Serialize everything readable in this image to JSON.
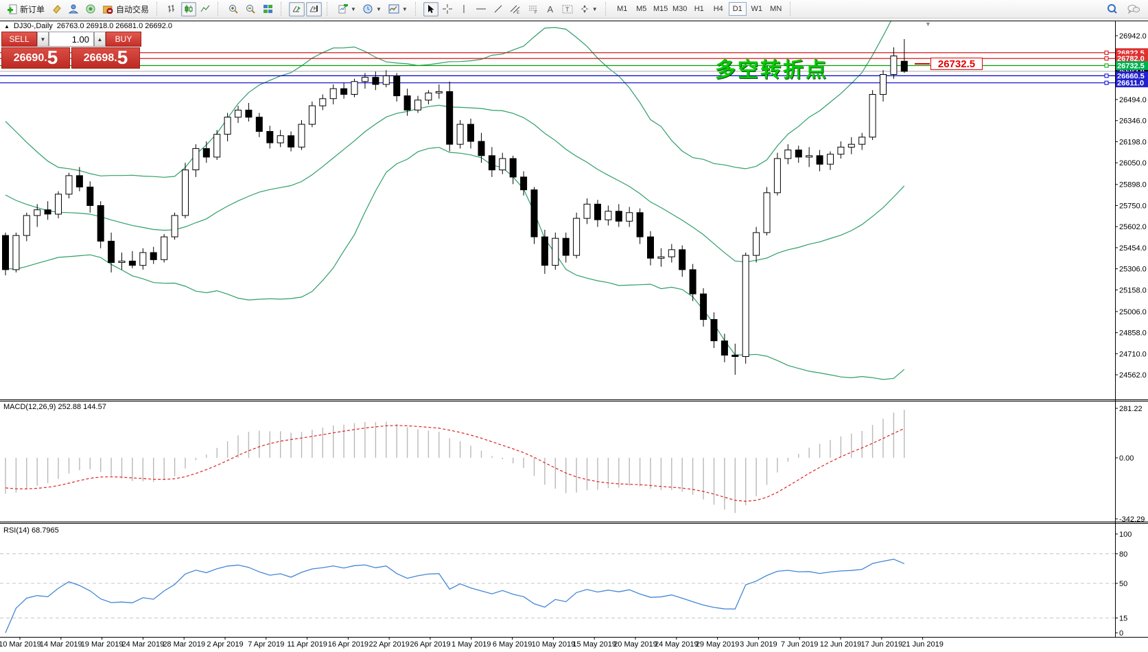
{
  "toolbar": {
    "new_order_label": "新订单",
    "autotrading_label": "自动交易",
    "timeframes": [
      "M1",
      "M5",
      "M15",
      "M30",
      "H1",
      "H4",
      "D1",
      "W1",
      "MN"
    ],
    "active_timeframe": "D1",
    "text_tool_a": "A",
    "channel_sub": "E",
    "fibo_sub": "F"
  },
  "chart": {
    "collapse_icon": "▲",
    "title": "DJ30-,Daily",
    "ohlc_text": "26763.0 26918.0 26681.0 26692.0",
    "annotation_text": "多空转折点",
    "price_tag_text": "26732.5",
    "scroll_marker": "▼",
    "trade_panel": {
      "sell_label": "SELL",
      "buy_label": "BUY",
      "volume": "1.00",
      "step_down": "▼",
      "step_up": "▲",
      "sell_price_main": "26690",
      "sell_price_dot": ".",
      "sell_price_big": "5",
      "buy_price_main": "26698",
      "buy_price_dot": ".",
      "buy_price_big": "5"
    },
    "macd_label": "MACD(12,26,9) 252.88 144.57",
    "rsi_label": "RSI(14) 68.7965"
  },
  "chart_data": {
    "type": "candlestick",
    "symbol": "DJ30-",
    "timeframe": "Daily",
    "current_ohlc": {
      "open": 26763.0,
      "high": 26918.0,
      "low": 26681.0,
      "close": 26692.0
    },
    "bid": 26690.5,
    "ask": 26698.5,
    "y_axis_ticks": [
      "26942.0",
      "26494.0",
      "26346.0",
      "26198.0",
      "26050.0",
      "25898.0",
      "25750.0",
      "25602.0",
      "25454.0",
      "25306.0",
      "25158.0",
      "25006.0",
      "24858.0",
      "24710.0",
      "24562.0"
    ],
    "x_axis_dates": [
      "10 Mar 2019",
      "14 Mar 2019",
      "19 Mar 2019",
      "24 Mar 2019",
      "28 Mar 2019",
      "2 Apr 2019",
      "7 Apr 2019",
      "11 Apr 2019",
      "16 Apr 2019",
      "22 Apr 2019",
      "26 Apr 2019",
      "1 May 2019",
      "6 May 2019",
      "10 May 2019",
      "15 May 2019",
      "20 May 2019",
      "24 May 2019",
      "29 May 2019",
      "3 Jun 2019",
      "7 Jun 2019",
      "12 Jun 2019",
      "17 Jun 2019",
      "21 Jun 2019"
    ],
    "candles": [
      [
        25540,
        25560,
        25260,
        25300
      ],
      [
        25300,
        25560,
        25280,
        25540
      ],
      [
        25540,
        25700,
        25500,
        25680
      ],
      [
        25680,
        25760,
        25600,
        25720
      ],
      [
        25720,
        25780,
        25650,
        25690
      ],
      [
        25690,
        25850,
        25660,
        25830
      ],
      [
        25830,
        25980,
        25800,
        25960
      ],
      [
        25960,
        26020,
        25850,
        25880
      ],
      [
        25880,
        25920,
        25700,
        25750
      ],
      [
        25750,
        25780,
        25450,
        25500
      ],
      [
        25500,
        25560,
        25280,
        25350
      ],
      [
        25350,
        25420,
        25300,
        25360
      ],
      [
        25360,
        25430,
        25310,
        25330
      ],
      [
        25330,
        25450,
        25300,
        25420
      ],
      [
        25420,
        25460,
        25340,
        25370
      ],
      [
        25370,
        25550,
        25350,
        25530
      ],
      [
        25530,
        25700,
        25510,
        25680
      ],
      [
        25680,
        26050,
        25660,
        26000
      ],
      [
        26000,
        26180,
        25950,
        26150
      ],
      [
        26150,
        26200,
        26050,
        26090
      ],
      [
        26090,
        26280,
        26070,
        26250
      ],
      [
        26250,
        26400,
        26200,
        26370
      ],
      [
        26370,
        26450,
        26330,
        26420
      ],
      [
        26420,
        26470,
        26340,
        26370
      ],
      [
        26370,
        26400,
        26230,
        26270
      ],
      [
        26270,
        26310,
        26150,
        26190
      ],
      [
        26190,
        26280,
        26160,
        26240
      ],
      [
        26240,
        26270,
        26130,
        26160
      ],
      [
        26160,
        26350,
        26140,
        26320
      ],
      [
        26320,
        26480,
        26300,
        26450
      ],
      [
        26450,
        26530,
        26420,
        26500
      ],
      [
        26500,
        26600,
        26460,
        26570
      ],
      [
        26570,
        26610,
        26500,
        26530
      ],
      [
        26530,
        26640,
        26510,
        26620
      ],
      [
        26620,
        26680,
        26570,
        26650
      ],
      [
        26650,
        26690,
        26560,
        26600
      ],
      [
        26600,
        26700,
        26580,
        26660
      ],
      [
        26660,
        26680,
        26480,
        26520
      ],
      [
        26520,
        26570,
        26380,
        26420
      ],
      [
        26420,
        26520,
        26400,
        26490
      ],
      [
        26490,
        26560,
        26460,
        26540
      ],
      [
        26540,
        26600,
        26500,
        26550
      ],
      [
        26550,
        26620,
        26130,
        26180
      ],
      [
        26180,
        26350,
        26150,
        26320
      ],
      [
        26320,
        26360,
        26150,
        26200
      ],
      [
        26200,
        26260,
        26050,
        26100
      ],
      [
        26100,
        26160,
        25950,
        26000
      ],
      [
        26000,
        26120,
        25970,
        26080
      ],
      [
        26080,
        26100,
        25900,
        25950
      ],
      [
        25950,
        25990,
        25820,
        25860
      ],
      [
        25860,
        25880,
        25480,
        25530
      ],
      [
        25530,
        25580,
        25270,
        25330
      ],
      [
        25330,
        25560,
        25300,
        25520
      ],
      [
        25520,
        25560,
        25350,
        25400
      ],
      [
        25400,
        25700,
        25380,
        25660
      ],
      [
        25660,
        25800,
        25620,
        25760
      ],
      [
        25760,
        25790,
        25600,
        25650
      ],
      [
        25650,
        25750,
        25610,
        25710
      ],
      [
        25710,
        25760,
        25600,
        25640
      ],
      [
        25640,
        25740,
        25600,
        25700
      ],
      [
        25700,
        25730,
        25480,
        25530
      ],
      [
        25530,
        25570,
        25330,
        25380
      ],
      [
        25380,
        25450,
        25320,
        25390
      ],
      [
        25390,
        25480,
        25350,
        25440
      ],
      [
        25440,
        25470,
        25250,
        25300
      ],
      [
        25300,
        25340,
        25080,
        25130
      ],
      [
        25130,
        25170,
        24900,
        24950
      ],
      [
        24950,
        25000,
        24750,
        24800
      ],
      [
        24800,
        24850,
        24650,
        24700
      ],
      [
        24700,
        24780,
        24562,
        24690
      ],
      [
        24690,
        25420,
        24640,
        25400
      ],
      [
        25400,
        25600,
        25350,
        25560
      ],
      [
        25560,
        25880,
        25540,
        25840
      ],
      [
        25840,
        26120,
        25820,
        26080
      ],
      [
        26080,
        26180,
        26040,
        26140
      ],
      [
        26140,
        26170,
        26050,
        26090
      ],
      [
        26090,
        26160,
        26020,
        26100
      ],
      [
        26100,
        26140,
        25990,
        26040
      ],
      [
        26040,
        26130,
        26000,
        26110
      ],
      [
        26110,
        26200,
        26080,
        26160
      ],
      [
        26160,
        26230,
        26110,
        26180
      ],
      [
        26180,
        26260,
        26140,
        26230
      ],
      [
        26230,
        26560,
        26210,
        26530
      ],
      [
        26530,
        26700,
        26480,
        26670
      ],
      [
        26670,
        26860,
        26640,
        26800
      ],
      [
        26763,
        26918,
        26681,
        26692
      ]
    ],
    "prehistory_closes": [
      26350,
      26300,
      26240,
      26180,
      26120,
      26060,
      26000,
      25950,
      25900,
      25850,
      25800,
      25760,
      25720,
      25690,
      25660,
      25630,
      25610,
      25590,
      25570,
      25550
    ],
    "bollinger": {
      "period": 20,
      "deviation": 2,
      "color": "#2E9E67"
    },
    "horizontal_lines": [
      {
        "price": 26822.5,
        "label": "26822.5",
        "line_color": "#cc0000",
        "tag_color": "#e03030"
      },
      {
        "price": 26782.0,
        "label": "26782.0",
        "line_color": "#cc0000",
        "tag_color": "#e03030"
      },
      {
        "price": 26732.5,
        "label": "26732.5",
        "line_color": "#00a000",
        "tag_color": "#00b050"
      },
      {
        "price": 26660.5,
        "label": "26660.5",
        "line_color": "#0000cc",
        "tag_color": "#2222cc"
      },
      {
        "price": 26611.0,
        "label": "26611.0",
        "line_color": "#0000cc",
        "tag_color": "#2222cc"
      }
    ],
    "current_price": {
      "price": 26692.0,
      "label": "26692.0",
      "line_color": "#aaaaaa",
      "tag_color": "#000000"
    },
    "macd": {
      "params": "12,26,9",
      "main_value": 252.88,
      "signal_value": 144.57,
      "scale_labels": [
        "281.22",
        "0.00",
        "-342.29"
      ],
      "scale_values": [
        281.22,
        0.0,
        -342.29
      ],
      "histogram_color": "#b8b8b8",
      "signal_color": "#dd2222"
    },
    "rsi": {
      "period": 14,
      "value": 68.7965,
      "scale_labels": [
        "100",
        "80",
        "50",
        "15",
        "0"
      ],
      "scale_values": [
        100,
        80,
        50,
        15,
        0
      ],
      "levels": [
        80,
        50,
        15
      ],
      "line_color": "#4285d6"
    },
    "candle_colors": {
      "bull_fill": "#ffffff",
      "bear_fill": "#000000",
      "outline": "#000000"
    }
  }
}
